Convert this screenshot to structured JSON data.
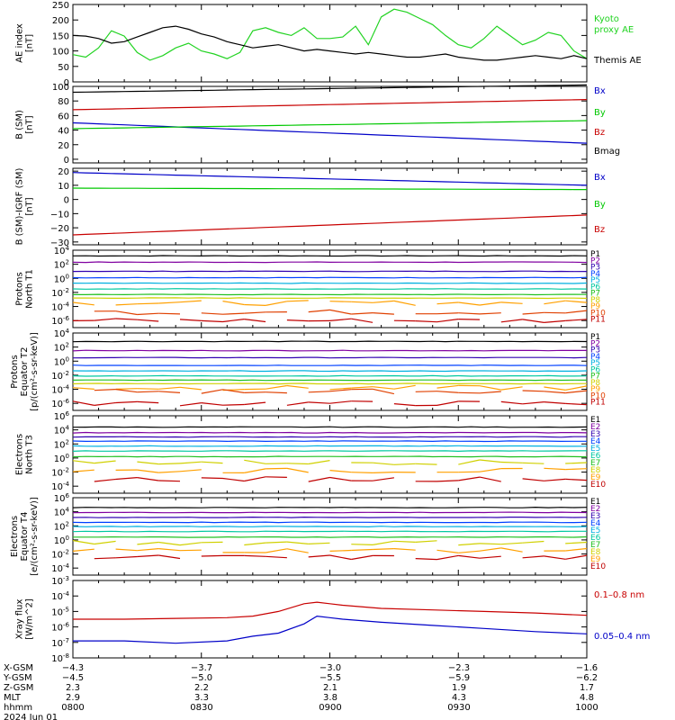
{
  "chart_data": [
    {
      "type": "line",
      "ylabel": [
        "AE index",
        "[nT]"
      ],
      "ylim": [
        0,
        250
      ],
      "y_ticks": [
        "250",
        "200",
        "150",
        "100",
        "50",
        "0"
      ],
      "x_hours": [
        0,
        0.05,
        0.1,
        0.15,
        0.2,
        0.25,
        0.3,
        0.35,
        0.4,
        0.45,
        0.5,
        0.55,
        0.6,
        0.65,
        0.7,
        0.75,
        0.8,
        0.85,
        0.9,
        0.95,
        1.0,
        1.05,
        1.1,
        1.15,
        1.2,
        1.25,
        1.3,
        1.35,
        1.4,
        1.45,
        1.5,
        1.55,
        1.6,
        1.65,
        1.7,
        1.75,
        1.8,
        1.85,
        1.9,
        1.95,
        2.0
      ],
      "series": [
        {
          "name": "Kyoto proxy AE",
          "color": "#22d322",
          "legend_lines": [
            "Kyoto",
            "proxy AE"
          ],
          "values": [
            88,
            80,
            110,
            165,
            148,
            95,
            70,
            85,
            110,
            125,
            100,
            90,
            75,
            95,
            165,
            175,
            160,
            150,
            175,
            140,
            140,
            145,
            180,
            120,
            210,
            235,
            225,
            205,
            185,
            150,
            120,
            110,
            140,
            180,
            150,
            120,
            135,
            160,
            150,
            100,
            75
          ]
        },
        {
          "name": "Themis AE",
          "color": "#000000",
          "legend_lines": [
            "Themis AE"
          ],
          "values": [
            150,
            148,
            140,
            125,
            130,
            145,
            160,
            175,
            180,
            170,
            155,
            145,
            130,
            120,
            110,
            115,
            120,
            110,
            100,
            105,
            100,
            95,
            90,
            95,
            90,
            85,
            80,
            80,
            85,
            90,
            80,
            75,
            70,
            70,
            75,
            80,
            85,
            80,
            75,
            85,
            75
          ]
        }
      ]
    },
    {
      "type": "line",
      "ylabel": [
        "B (SM)",
        "[nT]"
      ],
      "ylim": [
        -5,
        100
      ],
      "y_ticks": [
        "100",
        "80",
        "60",
        "40",
        "20",
        "0"
      ],
      "series": [
        {
          "name": "Bx",
          "color": "#0000c8",
          "start": 50,
          "end": 22
        },
        {
          "name": "By",
          "color": "#00c800",
          "start": 42,
          "end": 53
        },
        {
          "name": "Bz",
          "color": "#c80000",
          "start": 68,
          "end": 82
        },
        {
          "name": "Bmag",
          "color": "#000000",
          "start": 92,
          "end": 102
        }
      ]
    },
    {
      "type": "line",
      "ylabel": [
        "B (SM)-IGRF (SM)",
        "[nT]"
      ],
      "ylim": [
        -32,
        22
      ],
      "y_ticks": [
        "20",
        "10",
        "0",
        "−10",
        "−20",
        "−30"
      ],
      "series": [
        {
          "name": "Bx",
          "color": "#0000c8",
          "start": 19,
          "end": 10
        },
        {
          "name": "By",
          "color": "#00c800",
          "start": 8,
          "end": 7
        },
        {
          "name": "Bz",
          "color": "#c80000",
          "start": -25,
          "end": -11
        }
      ]
    },
    {
      "type": "line",
      "log": true,
      "ylabel": [
        "Protons",
        "North T1"
      ],
      "ylog": [
        -7,
        4
      ],
      "y_ticks": [
        {
          "b": "10",
          "e": "4",
          "p": 4
        },
        {
          "b": "10",
          "e": "2",
          "p": 2
        },
        {
          "b": "10",
          "e": "0",
          "p": 0
        },
        {
          "b": "10",
          "e": "-2",
          "p": -2
        },
        {
          "b": "10",
          "e": "-4",
          "p": -4
        },
        {
          "b": "10",
          "e": "-6",
          "p": -6
        }
      ],
      "legend": [
        "P1",
        "P2",
        "P3",
        "P4",
        "P5",
        "P6",
        "P7",
        "P8",
        "P9",
        "P10",
        "P11"
      ],
      "colors": [
        "#000000",
        "#8000a0",
        "#3000b0",
        "#0040ff",
        "#00b0e0",
        "#00c8a0",
        "#20c020",
        "#d0d000",
        "#ffa000",
        "#e04000",
        "#c00000"
      ],
      "levels": [
        3.2,
        2.3,
        1.0,
        0.1,
        -0.7,
        -1.5,
        -2.3,
        -2.8,
        -3.5,
        -4.8,
        -6.0
      ]
    },
    {
      "type": "line",
      "log": true,
      "ylabel": [
        "Protons",
        "Equator T2",
        "[p/(cm²-s-sr-keV)]"
      ],
      "ylog": [
        -7,
        4
      ],
      "y_ticks": [
        {
          "b": "10",
          "e": "4",
          "p": 4
        },
        {
          "b": "10",
          "e": "2",
          "p": 2
        },
        {
          "b": "10",
          "e": "0",
          "p": 0
        },
        {
          "b": "10",
          "e": "-2",
          "p": -2
        },
        {
          "b": "10",
          "e": "-4",
          "p": -4
        },
        {
          "b": "10",
          "e": "-6",
          "p": -6
        }
      ],
      "legend": [
        "P1",
        "P2",
        "P3",
        "P4",
        "P5",
        "P6",
        "P7",
        "P8",
        "P9",
        "P10",
        "P11"
      ],
      "colors": [
        "#000000",
        "#8000a0",
        "#3000b0",
        "#0040ff",
        "#00b0e0",
        "#00c8a0",
        "#20c020",
        "#d0d000",
        "#ffa000",
        "#e04000",
        "#c00000"
      ],
      "levels": [
        2.8,
        1.5,
        0.5,
        -0.6,
        -1.4,
        -2.1,
        -2.7,
        -3.2,
        -3.8,
        -4.3,
        -6.0
      ]
    },
    {
      "type": "line",
      "log": true,
      "ylabel": [
        "Electrons",
        "North T3"
      ],
      "ylog": [
        -5,
        6
      ],
      "y_ticks": [
        {
          "b": "10",
          "e": "6",
          "p": 6
        },
        {
          "b": "10",
          "e": "4",
          "p": 4
        },
        {
          "b": "10",
          "e": "2",
          "p": 2
        },
        {
          "b": "10",
          "e": "0",
          "p": 0
        },
        {
          "b": "10",
          "e": "-2",
          "p": -2
        },
        {
          "b": "10",
          "e": "-4",
          "p": -4
        }
      ],
      "legend": [
        "E1",
        "E2",
        "E3",
        "E4",
        "E5",
        "E6",
        "E7",
        "E8",
        "E9",
        "E10"
      ],
      "colors": [
        "#000000",
        "#8000a0",
        "#3000b0",
        "#0040ff",
        "#00b0e0",
        "#00c8a0",
        "#20c020",
        "#d0d000",
        "#ffa000",
        "#c00000"
      ],
      "levels": [
        4.4,
        3.6,
        3.0,
        2.4,
        1.7,
        1.0,
        0.2,
        -0.6,
        -1.8,
        -3.0
      ]
    },
    {
      "type": "line",
      "log": true,
      "ylabel": [
        "Electrons",
        "Equator T4",
        "[e/(cm²-s-sr-keV)]"
      ],
      "ylog": [
        -5,
        6
      ],
      "y_ticks": [
        {
          "b": "10",
          "e": "6",
          "p": 6
        },
        {
          "b": "10",
          "e": "4",
          "p": 4
        },
        {
          "b": "10",
          "e": "2",
          "p": 2
        },
        {
          "b": "10",
          "e": "0",
          "p": 0
        },
        {
          "b": "10",
          "e": "-2",
          "p": -2
        },
        {
          "b": "10",
          "e": "-4",
          "p": -4
        }
      ],
      "legend": [
        "E1",
        "E2",
        "E3",
        "E4",
        "E5",
        "E6",
        "E7",
        "E8",
        "E9",
        "E10"
      ],
      "colors": [
        "#000000",
        "#8000a0",
        "#3000b0",
        "#0040ff",
        "#00b0e0",
        "#00c8a0",
        "#20c020",
        "#d0d000",
        "#ffa000",
        "#c00000"
      ],
      "levels": [
        4.6,
        3.9,
        3.2,
        2.5,
        1.9,
        1.2,
        0.4,
        -0.4,
        -1.5,
        -2.5
      ]
    },
    {
      "type": "line",
      "log": true,
      "ylabel": [
        "Xray flux",
        "[W/m^2]"
      ],
      "ylog": [
        -8,
        -3
      ],
      "y_ticks": [
        {
          "b": "10",
          "e": "-3",
          "p": -3
        },
        {
          "b": "10",
          "e": "-4",
          "p": -4
        },
        {
          "b": "10",
          "e": "-5",
          "p": -5
        },
        {
          "b": "10",
          "e": "-6",
          "p": -6
        },
        {
          "b": "10",
          "e": "-7",
          "p": -7
        },
        {
          "b": "10",
          "e": "-8",
          "p": -8
        }
      ],
      "x_hours": [
        0,
        0.2,
        0.4,
        0.6,
        0.7,
        0.8,
        0.9,
        0.95,
        1.0,
        1.05,
        1.2,
        1.4,
        1.6,
        1.8,
        2.0
      ],
      "series": [
        {
          "name": "0.1–0.8 nm",
          "color": "#c80000",
          "values": [
            -5.5,
            -5.5,
            -5.45,
            -5.4,
            -5.3,
            -5.0,
            -4.5,
            -4.4,
            -4.5,
            -4.6,
            -4.8,
            -4.9,
            -5.0,
            -5.1,
            -5.25
          ]
        },
        {
          "name": "0.05–0.4 nm",
          "color": "#0000c8",
          "values": [
            -6.9,
            -6.9,
            -7.05,
            -6.9,
            -6.6,
            -6.4,
            -5.8,
            -5.3,
            -5.4,
            -5.5,
            -5.7,
            -5.9,
            -6.1,
            -6.3,
            -6.45
          ]
        }
      ]
    }
  ],
  "x_axis": {
    "rows": [
      {
        "label": "X-GSM",
        "values": [
          "−4.3",
          "−3.7",
          "−3.0",
          "−2.3",
          "−1.6"
        ]
      },
      {
        "label": "Y-GSM",
        "values": [
          "−4.5",
          "−5.0",
          "−5.5",
          "−5.9",
          "−6.2"
        ]
      },
      {
        "label": "Z-GSM",
        "values": [
          "2.3",
          "2.2",
          "2.1",
          "1.9",
          "1.7"
        ]
      },
      {
        "label": "MLT",
        "values": [
          "2.9",
          "3.3",
          "3.8",
          "4.3",
          "4.8"
        ]
      },
      {
        "label": "hhmm",
        "values": [
          "0800",
          "0830",
          "0900",
          "0930",
          "1000"
        ]
      }
    ],
    "date": "2024 Jun 01"
  }
}
